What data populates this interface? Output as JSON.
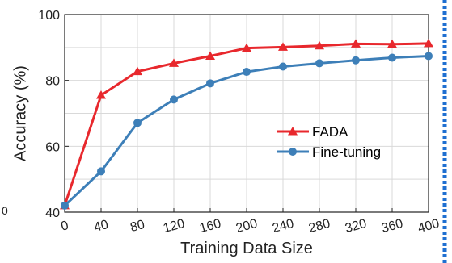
{
  "chart_data": {
    "type": "line",
    "xlabel": "Training Data Size",
    "ylabel": "Accuracy (%)",
    "x": [
      0,
      40,
      80,
      120,
      160,
      200,
      240,
      280,
      320,
      360,
      400
    ],
    "xticks": [
      "0",
      "40",
      "80",
      "120",
      "160",
      "200",
      "240",
      "280",
      "320",
      "360",
      "400"
    ],
    "yticks": [
      "40",
      "60",
      "80",
      "100"
    ],
    "xlim": [
      0,
      400
    ],
    "ylim": [
      40,
      100
    ],
    "grid": true,
    "legend_position": "center-right",
    "series": [
      {
        "name": "FADA",
        "color": "#e8282d",
        "marker": "triangle",
        "values": [
          42,
          75.5,
          82.7,
          85.2,
          87.4,
          89.8,
          90.1,
          90.5,
          91.1,
          91.0,
          91.2
        ]
      },
      {
        "name": "Fine-tuning",
        "color": "#3d7fb8",
        "marker": "circle",
        "values": [
          42,
          52.4,
          67.1,
          74.2,
          79.1,
          82.6,
          84.2,
          85.2,
          86.1,
          86.9,
          87.4
        ]
      }
    ],
    "stray_tick_label": "0",
    "border_color": "#1f6fd1"
  }
}
